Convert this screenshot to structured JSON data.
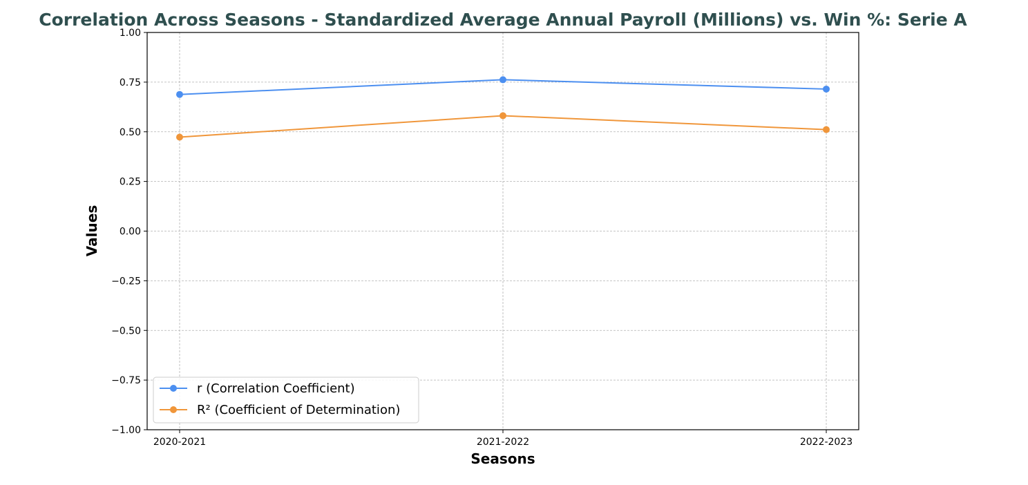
{
  "chart_data": {
    "type": "line",
    "title": "Correlation Across Seasons - Standardized Average Annual Payroll (Millions) vs. Win %: Serie A",
    "xlabel": "Seasons",
    "ylabel": "Values",
    "categories": [
      "2020-2021",
      "2021-2022",
      "2022-2023"
    ],
    "ylim": [
      -1.0,
      1.0
    ],
    "yticks": [
      "1.00",
      "0.75",
      "0.50",
      "0.25",
      "0.00",
      "−0.25",
      "−0.50",
      "−0.75",
      "−1.00"
    ],
    "ytick_values": [
      1.0,
      0.75,
      0.5,
      0.25,
      0.0,
      -0.25,
      -0.5,
      -0.75,
      -1.0
    ],
    "grid": true,
    "legend_position": "lower-left",
    "series": [
      {
        "name": "r (Correlation Coefficient)",
        "color": "#4c8ff0",
        "values": [
          0.688,
          0.762,
          0.715
        ]
      },
      {
        "name": "R² (Coefficient of Determination)",
        "color": "#f0963a",
        "values": [
          0.473,
          0.581,
          0.511
        ]
      }
    ]
  }
}
